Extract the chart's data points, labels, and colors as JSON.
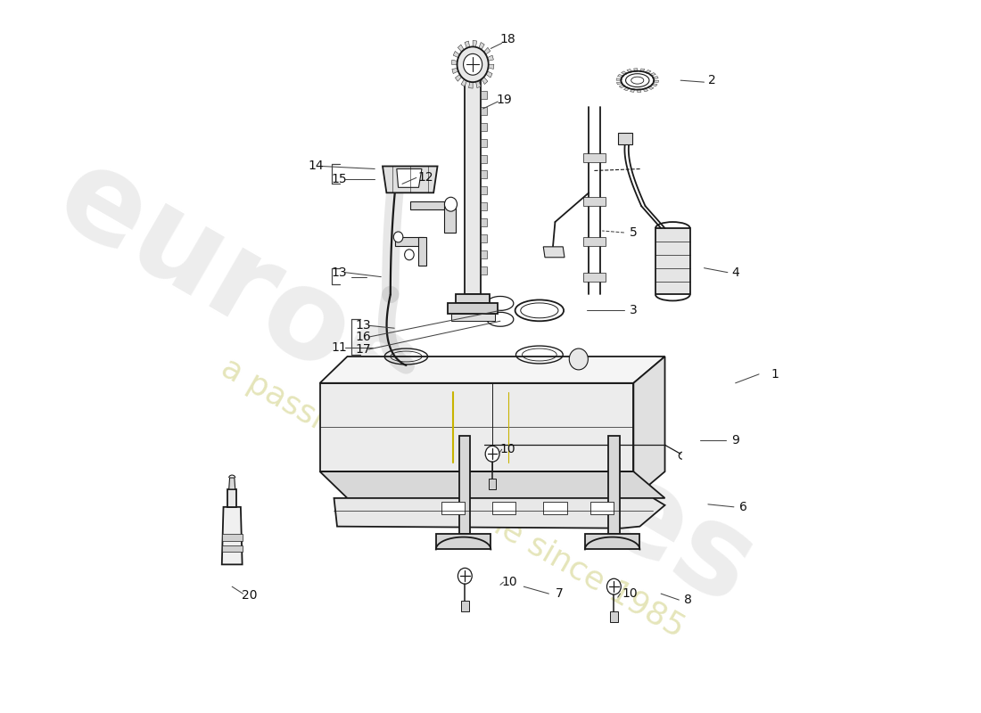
{
  "bg_color": "#ffffff",
  "line_color": "#1a1a1a",
  "lw": 1.3,
  "watermark1": "eurospares",
  "watermark2": "a passion for Porsche since 1985",
  "wm_color": "#c8c8c8",
  "wm_color2": "#d4d48c",
  "fig_w": 11.0,
  "fig_h": 8.0,
  "dpi": 100,
  "parts_labels": [
    [
      "1",
      840,
      420,
      820,
      420,
      790,
      430,
      false
    ],
    [
      "2",
      760,
      88,
      750,
      90,
      720,
      88,
      false
    ],
    [
      "3",
      660,
      348,
      648,
      348,
      600,
      348,
      false
    ],
    [
      "4",
      790,
      305,
      780,
      305,
      750,
      300,
      false
    ],
    [
      "5",
      660,
      260,
      648,
      260,
      620,
      258,
      true
    ],
    [
      "6",
      800,
      570,
      788,
      570,
      755,
      567,
      false
    ],
    [
      "7",
      565,
      668,
      552,
      668,
      520,
      660,
      false
    ],
    [
      "8",
      730,
      675,
      718,
      675,
      695,
      668,
      false
    ],
    [
      "9",
      790,
      495,
      778,
      495,
      745,
      495,
      false
    ],
    [
      "10",
      500,
      505,
      492,
      505,
      488,
      510,
      false
    ],
    [
      "10",
      502,
      655,
      494,
      655,
      490,
      658,
      false
    ],
    [
      "10",
      655,
      668,
      643,
      668,
      640,
      672,
      false
    ],
    [
      "11",
      285,
      390,
      292,
      390,
      328,
      390,
      false
    ],
    [
      "12",
      395,
      198,
      383,
      198,
      365,
      205,
      false
    ],
    [
      "13",
      285,
      305,
      292,
      305,
      338,
      310,
      false
    ],
    [
      "13",
      315,
      365,
      322,
      365,
      355,
      368,
      false
    ],
    [
      "14",
      255,
      185,
      262,
      185,
      330,
      188,
      false
    ],
    [
      "15",
      285,
      200,
      292,
      200,
      330,
      200,
      false
    ],
    [
      "16",
      315,
      378,
      322,
      378,
      490,
      348,
      false
    ],
    [
      "17",
      315,
      392,
      322,
      392,
      490,
      360,
      false
    ],
    [
      "18",
      500,
      42,
      492,
      46,
      478,
      52,
      false
    ],
    [
      "19",
      495,
      110,
      487,
      112,
      468,
      120,
      false
    ],
    [
      "20",
      170,
      670,
      162,
      668,
      148,
      660,
      false
    ]
  ]
}
